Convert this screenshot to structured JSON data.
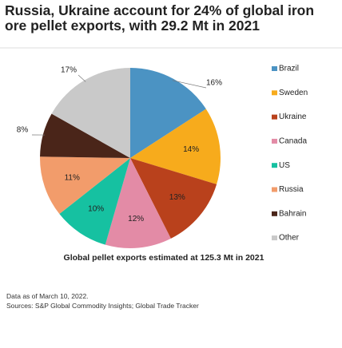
{
  "chart_data": {
    "type": "pie",
    "title": "Russia, Ukraine account for 24% of global iron ore pellet exports, with 29.2 Mt in 2021",
    "caption": "Global pellet exports estimated at 125.3 Mt in 2021",
    "notes": [
      "Data as of March 10, 2022.",
      "Sources: S&P Global Commodity Insights; Global Trade Tracker"
    ],
    "categories": [
      "Brazil",
      "Sweden",
      "Ukraine",
      "Canada",
      "US",
      "Russia",
      "Bahrain",
      "Other"
    ],
    "values": [
      16,
      14,
      13,
      12,
      10,
      11,
      8,
      17
    ],
    "value_labels": [
      "16%",
      "14%",
      "13%",
      "12%",
      "10%",
      "11%",
      "8%",
      "17%"
    ],
    "colors": [
      "#4b93c3",
      "#f7ab1c",
      "#b9411c",
      "#e38ba6",
      "#16c1a1",
      "#f29c6b",
      "#4a2519",
      "#c9c9c9"
    ],
    "legend": "right"
  }
}
